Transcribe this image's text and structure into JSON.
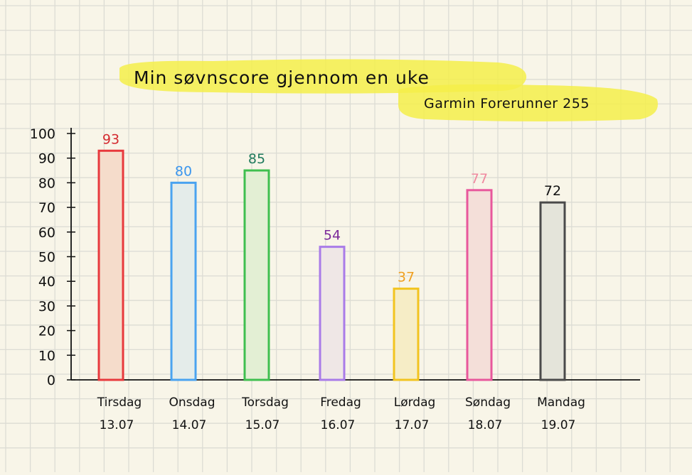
{
  "chart_data": {
    "type": "bar",
    "title": "Min søvnscore gjennom en uke",
    "subtitle": "Garmin Forerunner 255",
    "xlabel": "",
    "ylabel": "",
    "ylim": [
      0,
      100
    ],
    "yticks": [
      0,
      10,
      20,
      30,
      40,
      50,
      60,
      70,
      80,
      90,
      100
    ],
    "grid": true,
    "legend": "none",
    "categories": [
      {
        "day": "Tirsdag",
        "date": "13.07"
      },
      {
        "day": "Onsdag",
        "date": "14.07"
      },
      {
        "day": "Torsdag",
        "date": "15.07"
      },
      {
        "day": "Fredag",
        "date": "16.07"
      },
      {
        "day": "Lørdag",
        "date": "17.07"
      },
      {
        "day": "Søndag",
        "date": "18.07"
      },
      {
        "day": "Mandag",
        "date": "19.07"
      }
    ],
    "values": [
      93,
      80,
      85,
      54,
      37,
      77,
      72
    ],
    "colors": [
      "#e8393d",
      "#4aa3f0",
      "#3fbf4f",
      "#a97be8",
      "#f2c41f",
      "#e8589c",
      "#4a4a4a"
    ],
    "fills": [
      "#f5dccb",
      "#e4ecea",
      "#e3efd4",
      "#efe7e6",
      "#f6edc6",
      "#f4dfd9",
      "#e4e4da"
    ],
    "label_colors": [
      "#d42b30",
      "#3b96ee",
      "#1f7a5c",
      "#7b2a9a",
      "#f0a020",
      "#f08aa0",
      "#111111"
    ],
    "highlight_color": "#f4ee4a"
  }
}
